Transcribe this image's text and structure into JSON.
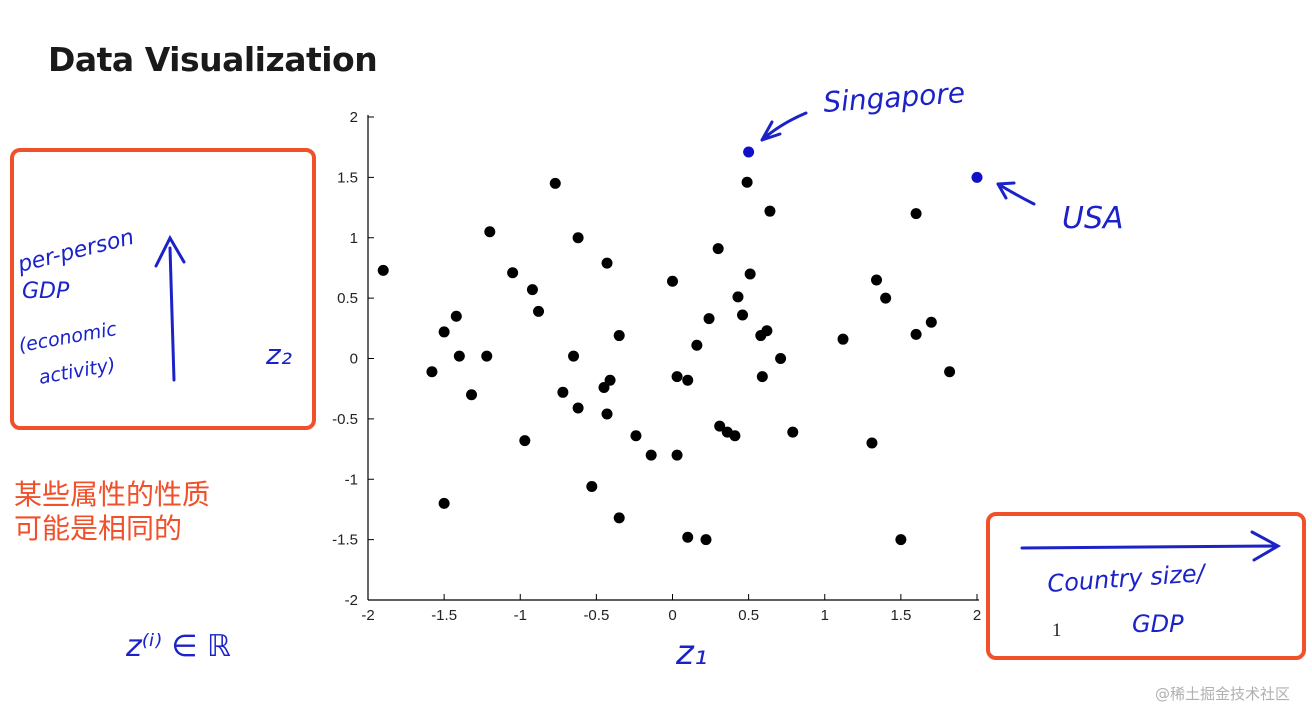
{
  "slide": {
    "title": "Data Visualization",
    "page_number": "1",
    "watermark": "@稀土掘金技术社区"
  },
  "annotations": {
    "singapore": "Singapore",
    "usa": "USA",
    "y_note": [
      "per-person",
      "GDP",
      "(economic",
      "activity)"
    ],
    "z2": "z₂",
    "z1": "z₁",
    "x_note": [
      "Country size/",
      "GDP"
    ],
    "formula": "z⁽ⁱ⁾ ∈ ℝ",
    "cn_note": [
      "某些属性的性质",
      "可能是相同的"
    ]
  },
  "colors": {
    "accent_red": "#f0502a",
    "ink_blue": "#1a22c8",
    "point_black": "#000000",
    "highlight_blue": "#1010c8"
  },
  "chart_data": {
    "type": "scatter",
    "xlim": [
      -2,
      2
    ],
    "ylim": [
      -2,
      2
    ],
    "xticks": [
      "-2",
      "-1.5",
      "-1",
      "-0.5",
      "0",
      "0.5",
      "1",
      "1.5",
      "2"
    ],
    "yticks": [
      "2",
      "1.5",
      "1",
      "0.5",
      "0",
      "-0.5",
      "-1",
      "-1.5",
      "-2"
    ],
    "grid": false,
    "series": [
      {
        "color": "#000000",
        "points": [
          [
            -1.9,
            0.73
          ],
          [
            -1.58,
            -0.11
          ],
          [
            -1.5,
            0.22
          ],
          [
            -1.42,
            0.35
          ],
          [
            -1.4,
            0.02
          ],
          [
            -1.32,
            -0.3
          ],
          [
            -1.5,
            -1.2
          ],
          [
            -1.22,
            0.02
          ],
          [
            -1.2,
            1.05
          ],
          [
            -1.05,
            0.71
          ],
          [
            -0.97,
            -0.68
          ],
          [
            -0.92,
            0.57
          ],
          [
            -0.88,
            0.39
          ],
          [
            -0.77,
            1.45
          ],
          [
            -0.72,
            -0.28
          ],
          [
            -0.65,
            0.02
          ],
          [
            -0.62,
            1.0
          ],
          [
            -0.62,
            -0.41
          ],
          [
            -0.53,
            -1.06
          ],
          [
            -0.45,
            -0.24
          ],
          [
            -0.43,
            0.79
          ],
          [
            -0.43,
            -0.46
          ],
          [
            -0.41,
            -0.18
          ],
          [
            -0.35,
            0.19
          ],
          [
            -0.35,
            -1.32
          ],
          [
            -0.24,
            -0.64
          ],
          [
            -0.14,
            -0.8
          ],
          [
            0.0,
            0.64
          ],
          [
            0.03,
            -0.8
          ],
          [
            0.03,
            -0.15
          ],
          [
            0.1,
            -0.18
          ],
          [
            0.1,
            -1.48
          ],
          [
            0.16,
            0.11
          ],
          [
            0.22,
            -1.5
          ],
          [
            0.24,
            0.33
          ],
          [
            0.3,
            0.91
          ],
          [
            0.31,
            -0.56
          ],
          [
            0.36,
            -0.61
          ],
          [
            0.41,
            -0.64
          ],
          [
            0.43,
            0.51
          ],
          [
            0.46,
            0.36
          ],
          [
            0.49,
            1.46
          ],
          [
            0.51,
            0.7
          ],
          [
            0.58,
            0.19
          ],
          [
            0.59,
            -0.15
          ],
          [
            0.62,
            0.23
          ],
          [
            0.64,
            1.22
          ],
          [
            0.71,
            0.0
          ],
          [
            0.79,
            -0.61
          ],
          [
            1.12,
            0.16
          ],
          [
            1.31,
            -0.7
          ],
          [
            1.34,
            0.65
          ],
          [
            1.4,
            0.5
          ],
          [
            1.5,
            -1.5
          ],
          [
            1.6,
            1.2
          ],
          [
            1.6,
            0.2
          ],
          [
            1.7,
            0.3
          ],
          [
            1.82,
            -0.11
          ]
        ]
      },
      {
        "color": "#1010c8",
        "points": [
          [
            0.5,
            1.71
          ],
          [
            2.0,
            1.5
          ]
        ]
      }
    ]
  }
}
